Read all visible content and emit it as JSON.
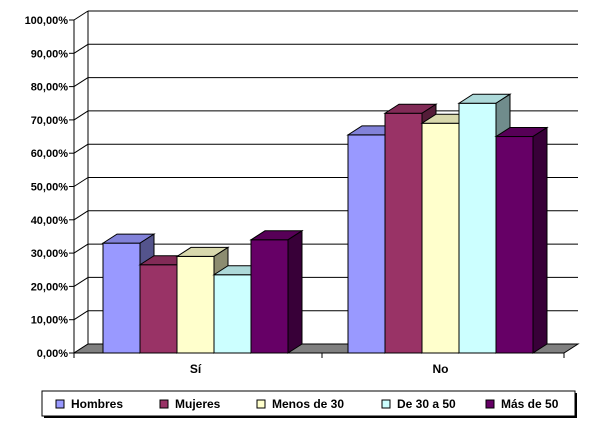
{
  "chart_data": {
    "type": "bar",
    "title": "",
    "xlabel": "",
    "ylabel": "",
    "categories": [
      "Sí",
      "No"
    ],
    "series": [
      {
        "name": "Hombres",
        "values": [
          33.0,
          65.5
        ],
        "color": "#9999FF"
      },
      {
        "name": "Mujeres",
        "values": [
          26.5,
          72.0
        ],
        "color": "#993366"
      },
      {
        "name": "Menos de 30",
        "values": [
          29.0,
          69.0
        ],
        "color": "#FFFFCC"
      },
      {
        "name": "De 30 a 50",
        "values": [
          23.5,
          75.0
        ],
        "color": "#CCFFFF"
      },
      {
        "name": "Más de 50",
        "values": [
          34.0,
          65.0
        ],
        "color": "#660066"
      }
    ],
    "ylim": [
      0,
      100
    ],
    "yticks": [
      0,
      10,
      20,
      30,
      40,
      50,
      60,
      70,
      80,
      90,
      100
    ],
    "ytick_labels": [
      "0,00%",
      "10,00%",
      "20,00%",
      "30,00%",
      "40,00%",
      "50,00%",
      "60,00%",
      "70,00%",
      "80,00%",
      "90,00%",
      "100,00%"
    ],
    "grid": true,
    "legend_position": "bottom",
    "style": "3d-clustered-bar"
  }
}
